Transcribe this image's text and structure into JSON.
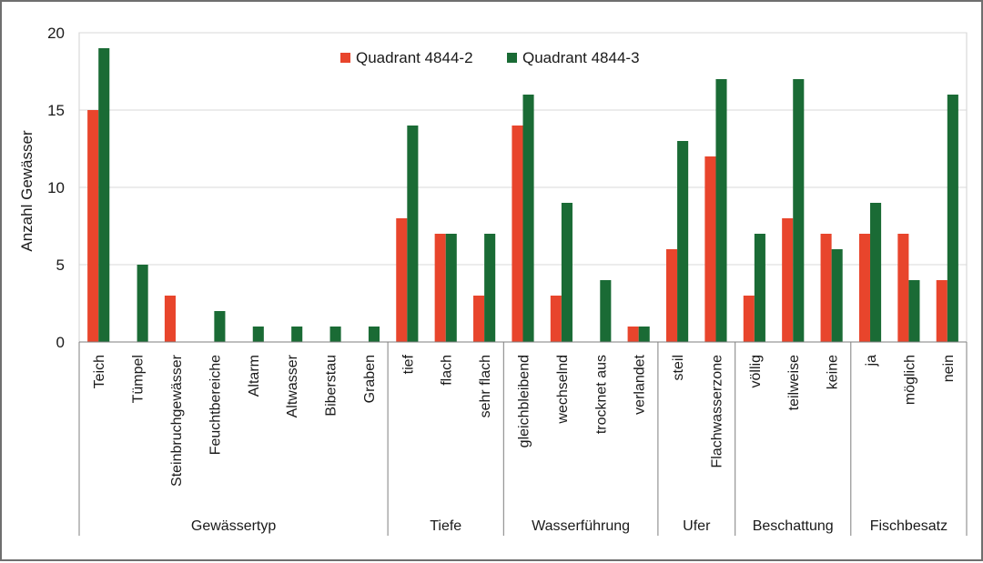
{
  "chart_data": {
    "type": "bar",
    "xlabel": "",
    "ylabel": "Anzahl Gewässer",
    "ylim": [
      0,
      20
    ],
    "yticks": [
      0,
      5,
      10,
      15,
      20
    ],
    "grid": "horizontal",
    "legend_position": "top-center",
    "groups": [
      {
        "name": "Gewässertyp",
        "categories": [
          "Teich",
          "Tümpel",
          "Steinbruchgewässer",
          "Feuchtbereiche",
          "Altarm",
          "Altwasser",
          "Biberstau",
          "Graben"
        ]
      },
      {
        "name": "Tiefe",
        "categories": [
          "tief",
          "flach",
          "sehr flach"
        ]
      },
      {
        "name": "Wasserführung",
        "categories": [
          "gleichbleibend",
          "wechselnd",
          "trocknet aus",
          "verlandet"
        ]
      },
      {
        "name": "Ufer",
        "categories": [
          "steil",
          "Flachwasserzone"
        ]
      },
      {
        "name": "Beschattung",
        "categories": [
          "völlig",
          "teilweise",
          "keine"
        ]
      },
      {
        "name": "Fischbesatz",
        "categories": [
          "ja",
          "möglich",
          "nein"
        ]
      }
    ],
    "categories": [
      "Teich",
      "Tümpel",
      "Steinbruchgewässer",
      "Feuchtbereiche",
      "Altarm",
      "Altwasser",
      "Biberstau",
      "Graben",
      "tief",
      "flach",
      "sehr flach",
      "gleichbleibend",
      "wechselnd",
      "trocknet aus",
      "verlandet",
      "steil",
      "Flachwasserzone",
      "völlig",
      "teilweise",
      "keine",
      "ja",
      "möglich",
      "nein"
    ],
    "series": [
      {
        "name": "Quadrant 4844-2",
        "color": "#e8452c",
        "values": [
          15,
          0,
          3,
          0,
          0,
          0,
          0,
          0,
          8,
          7,
          3,
          14,
          3,
          0,
          1,
          6,
          12,
          3,
          8,
          7,
          7,
          7,
          4
        ]
      },
      {
        "name": "Quadrant 4844-3",
        "color": "#1a6b35",
        "values": [
          19,
          5,
          0,
          2,
          1,
          1,
          1,
          1,
          14,
          7,
          7,
          16,
          9,
          4,
          1,
          13,
          17,
          7,
          17,
          6,
          9,
          4,
          16
        ]
      }
    ]
  }
}
